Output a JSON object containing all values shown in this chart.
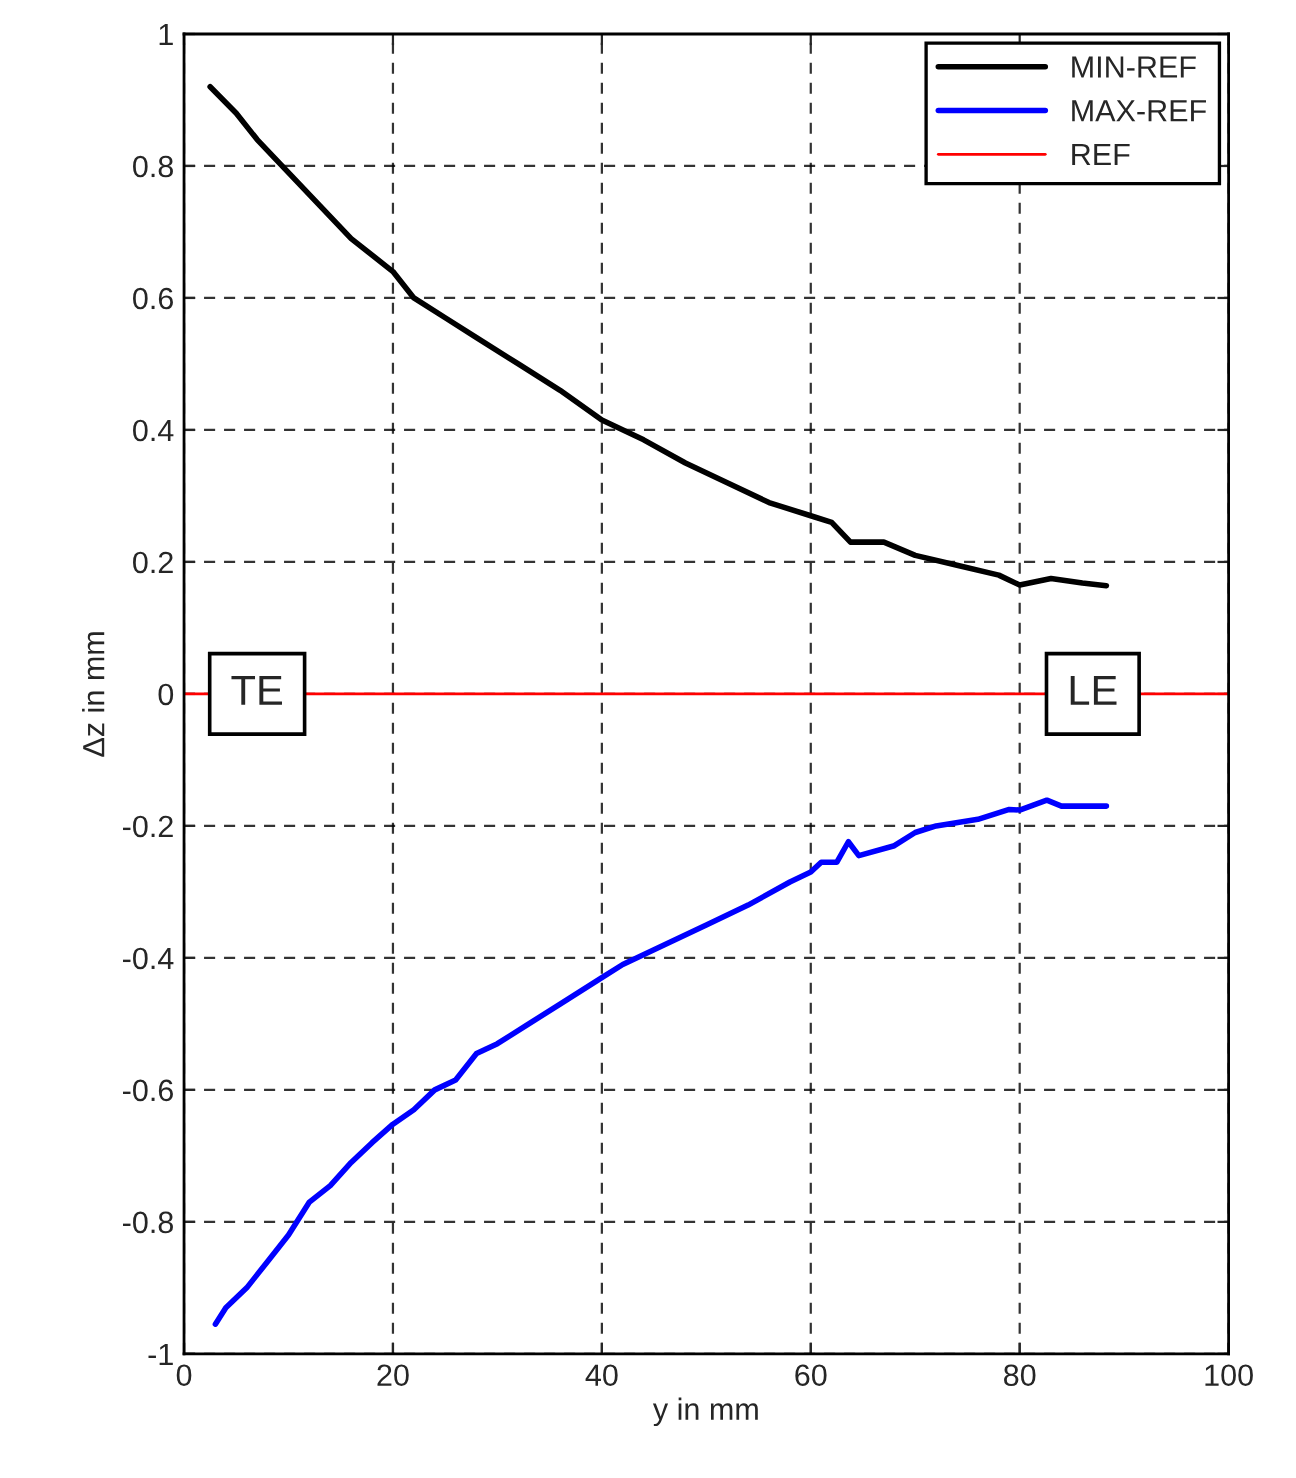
{
  "chart_data": {
    "type": "line",
    "xlabel": "y in mm",
    "ylabel": "Δz in mm",
    "xlim": [
      0,
      100
    ],
    "xticks": [
      0,
      20,
      40,
      60,
      80,
      100
    ],
    "ylim": [
      -1,
      1
    ],
    "yticks": [
      -1,
      -0.8,
      -0.6,
      -0.4,
      -0.2,
      0,
      0.2,
      0.4,
      0.6,
      0.8,
      1
    ],
    "grid": true,
    "legend": "top right",
    "line_style": "solid",
    "series": [
      {
        "name": "MIN-REF",
        "color": "#000000",
        "x": [
          2.5,
          5,
          7,
          10,
          13,
          16,
          20,
          22,
          25,
          28,
          32,
          36,
          40,
          44,
          48,
          52,
          56,
          60,
          62,
          63.8,
          67,
          70,
          74,
          78,
          80,
          83,
          86,
          88.3
        ],
        "values": [
          0.92,
          0.88,
          0.84,
          0.79,
          0.74,
          0.69,
          0.64,
          0.6,
          0.57,
          0.54,
          0.5,
          0.46,
          0.415,
          0.385,
          0.35,
          0.32,
          0.29,
          0.27,
          0.26,
          0.23,
          0.23,
          0.21,
          0.195,
          0.18,
          0.165,
          0.175,
          0.168,
          0.164
        ]
      },
      {
        "name": "MAX-REF",
        "color": "#0000ff",
        "x": [
          3,
          4,
          6,
          8,
          10,
          12,
          14,
          16,
          18,
          20,
          22,
          24,
          26,
          28,
          30,
          33,
          36,
          40,
          42,
          46,
          50,
          54,
          58,
          60,
          61,
          62.5,
          63.6,
          64.6,
          68,
          70,
          72,
          76,
          79,
          80,
          82.6,
          84,
          88.3
        ],
        "values": [
          -0.955,
          -0.93,
          -0.9,
          -0.86,
          -0.82,
          -0.77,
          -0.745,
          -0.71,
          -0.68,
          -0.652,
          -0.63,
          -0.6,
          -0.585,
          -0.545,
          -0.53,
          -0.5,
          -0.47,
          -0.43,
          -0.41,
          -0.38,
          -0.35,
          -0.32,
          -0.285,
          -0.27,
          -0.255,
          -0.255,
          -0.224,
          -0.245,
          -0.23,
          -0.21,
          -0.2,
          -0.19,
          -0.175,
          -0.176,
          -0.161,
          -0.17,
          -0.17
        ]
      },
      {
        "name": "REF",
        "color": "#ff0000",
        "x": [
          0,
          100
        ],
        "values": [
          0,
          0
        ]
      }
    ],
    "annotations": [
      {
        "text": "TE",
        "x": 7,
        "y": 0
      },
      {
        "text": "LE",
        "x": 87,
        "y": 0
      }
    ]
  }
}
